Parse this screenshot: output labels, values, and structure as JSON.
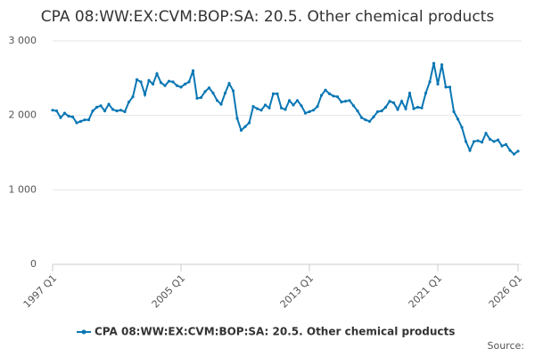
{
  "chart_data": {
    "type": "line",
    "title": "CPA 08:WW:EX:CVM:BOP:SA: 20.5. Other chemical products",
    "categories": [
      "1997 Q1",
      null,
      null,
      null,
      null,
      null,
      null,
      null,
      null,
      null,
      null,
      null,
      null,
      null,
      null,
      null,
      null,
      null,
      null,
      null,
      null,
      null,
      null,
      null,
      null,
      null,
      null,
      null,
      null,
      null,
      null,
      null,
      "2005 Q1",
      null,
      null,
      null,
      null,
      null,
      null,
      null,
      null,
      null,
      null,
      null,
      null,
      null,
      null,
      null,
      null,
      null,
      null,
      null,
      null,
      null,
      null,
      null,
      null,
      null,
      null,
      null,
      null,
      null,
      null,
      null,
      "2013 Q1",
      null,
      null,
      null,
      null,
      null,
      null,
      null,
      null,
      null,
      null,
      null,
      null,
      null,
      null,
      null,
      null,
      null,
      null,
      null,
      null,
      null,
      null,
      null,
      null,
      null,
      null,
      null,
      null,
      null,
      null,
      null,
      "2021 Q1",
      null,
      null,
      null,
      null,
      null,
      null,
      null,
      null,
      null,
      null,
      null,
      null,
      null,
      null,
      null,
      null,
      null,
      null,
      null,
      "2026 Q1"
    ],
    "series": [
      {
        "name": "CPA 08:WW:EX:CVM:BOP:SA: 20.5. Other chemical products",
        "color": "#0a77b4",
        "values": [
          2070,
          2060,
          1970,
          2030,
          1990,
          1980,
          1900,
          1920,
          1940,
          1940,
          2060,
          2110,
          2130,
          2060,
          2150,
          2080,
          2060,
          2070,
          2050,
          2180,
          2250,
          2480,
          2450,
          2280,
          2470,
          2420,
          2560,
          2440,
          2400,
          2460,
          2450,
          2400,
          2380,
          2420,
          2450,
          2600,
          2230,
          2240,
          2320,
          2370,
          2300,
          2200,
          2150,
          2300,
          2430,
          2330,
          1960,
          1800,
          1850,
          1900,
          2120,
          2090,
          2070,
          2140,
          2100,
          2290,
          2290,
          2100,
          2080,
          2200,
          2140,
          2200,
          2130,
          2030,
          2050,
          2070,
          2120,
          2270,
          2340,
          2290,
          2260,
          2250,
          2180,
          2190,
          2200,
          2130,
          2060,
          1970,
          1940,
          1920,
          1980,
          2050,
          2060,
          2110,
          2190,
          2170,
          2080,
          2190,
          2090,
          2300,
          2090,
          2110,
          2100,
          2300,
          2450,
          2700,
          2420,
          2680,
          2380,
          2380,
          2050,
          1950,
          1840,
          1650,
          1530,
          1650,
          1660,
          1640,
          1760,
          1680,
          1650,
          1670,
          1590,
          1610,
          1530,
          1480,
          1520
        ]
      }
    ],
    "ylim": [
      0,
      3000
    ],
    "yticks": [
      0,
      {
        "value": 1000,
        "label": "1 000"
      },
      {
        "value": 2000,
        "label": "2 000"
      },
      {
        "value": 3000,
        "label": "3 000"
      }
    ],
    "grid": true,
    "source": "Source:"
  }
}
